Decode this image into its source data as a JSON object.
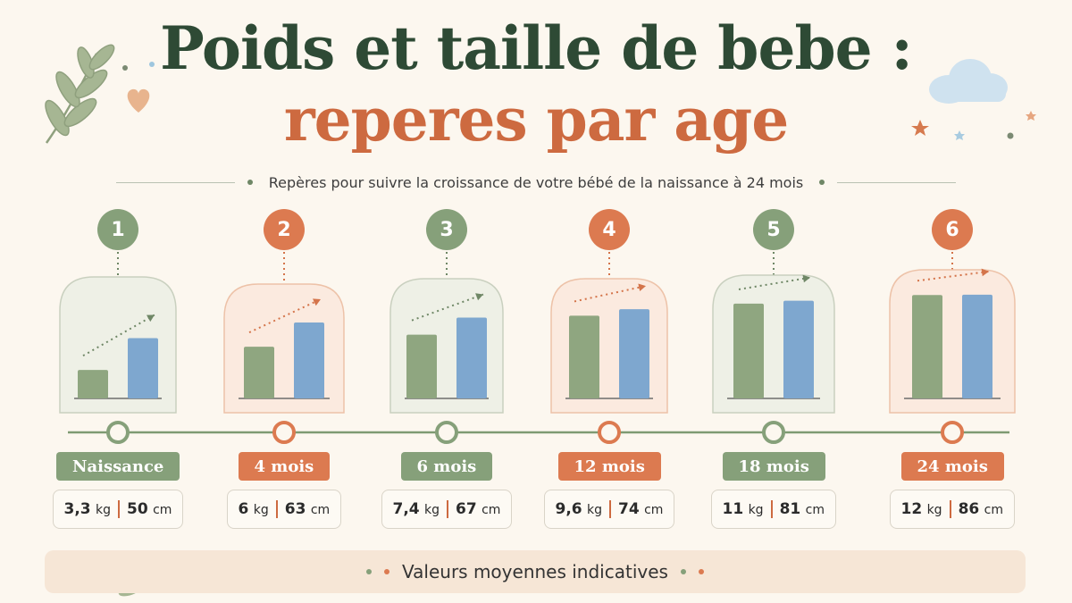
{
  "title": {
    "line1": "Poids et taille de bebe :",
    "line2": "reperes par age"
  },
  "subtitle": "Repères pour suivre la croissance de votre bébé de la naissance à 24 mois",
  "colors": {
    "green": "#86a07a",
    "orange": "#dc7a50",
    "bar_weight": "#8fa680",
    "bar_height": "#7ea7cf",
    "title_green": "#2e4a35",
    "title_orange": "#cd6a40"
  },
  "chart_data": {
    "type": "bar",
    "categories": [
      "Naissance",
      "4 mois",
      "6 mois",
      "12 mois",
      "18 mois",
      "24 mois"
    ],
    "series": [
      {
        "values": [
          3.3,
          6,
          7.4,
          9.6,
          11,
          12
        ]
      },
      {
        "values": [
          50,
          63,
          67,
          74,
          81,
          86
        ]
      }
    ],
    "units": [
      "kg",
      "cm"
    ],
    "title": "Poids et taille de bebe : reperes par age",
    "xlabel": "",
    "ylabel": ""
  },
  "milestones": [
    {
      "number": "1",
      "label": "Naissance",
      "weight": "3,3",
      "weight_unit": "kg",
      "height": "50",
      "height_unit": "cm",
      "theme": "green"
    },
    {
      "number": "2",
      "label": "4 mois",
      "weight": "6",
      "weight_unit": "kg",
      "height": "63",
      "height_unit": "cm",
      "theme": "orange"
    },
    {
      "number": "3",
      "label": "6 mois",
      "weight": "7,4",
      "weight_unit": "kg",
      "height": "67",
      "height_unit": "cm",
      "theme": "green"
    },
    {
      "number": "4",
      "label": "12 mois",
      "weight": "9,6",
      "weight_unit": "kg",
      "height": "74",
      "height_unit": "cm",
      "theme": "orange"
    },
    {
      "number": "5",
      "label": "18 mois",
      "weight": "11",
      "weight_unit": "kg",
      "height": "81",
      "height_unit": "cm",
      "theme": "green"
    },
    {
      "number": "6",
      "label": "24 mois",
      "weight": "12",
      "weight_unit": "kg",
      "height": "86",
      "height_unit": "cm",
      "theme": "orange"
    }
  ],
  "footer": "Valeurs moyennes indicatives",
  "icons": [
    "leaf-branch-icon",
    "heart-icon",
    "cloud-icon",
    "star-icon"
  ]
}
